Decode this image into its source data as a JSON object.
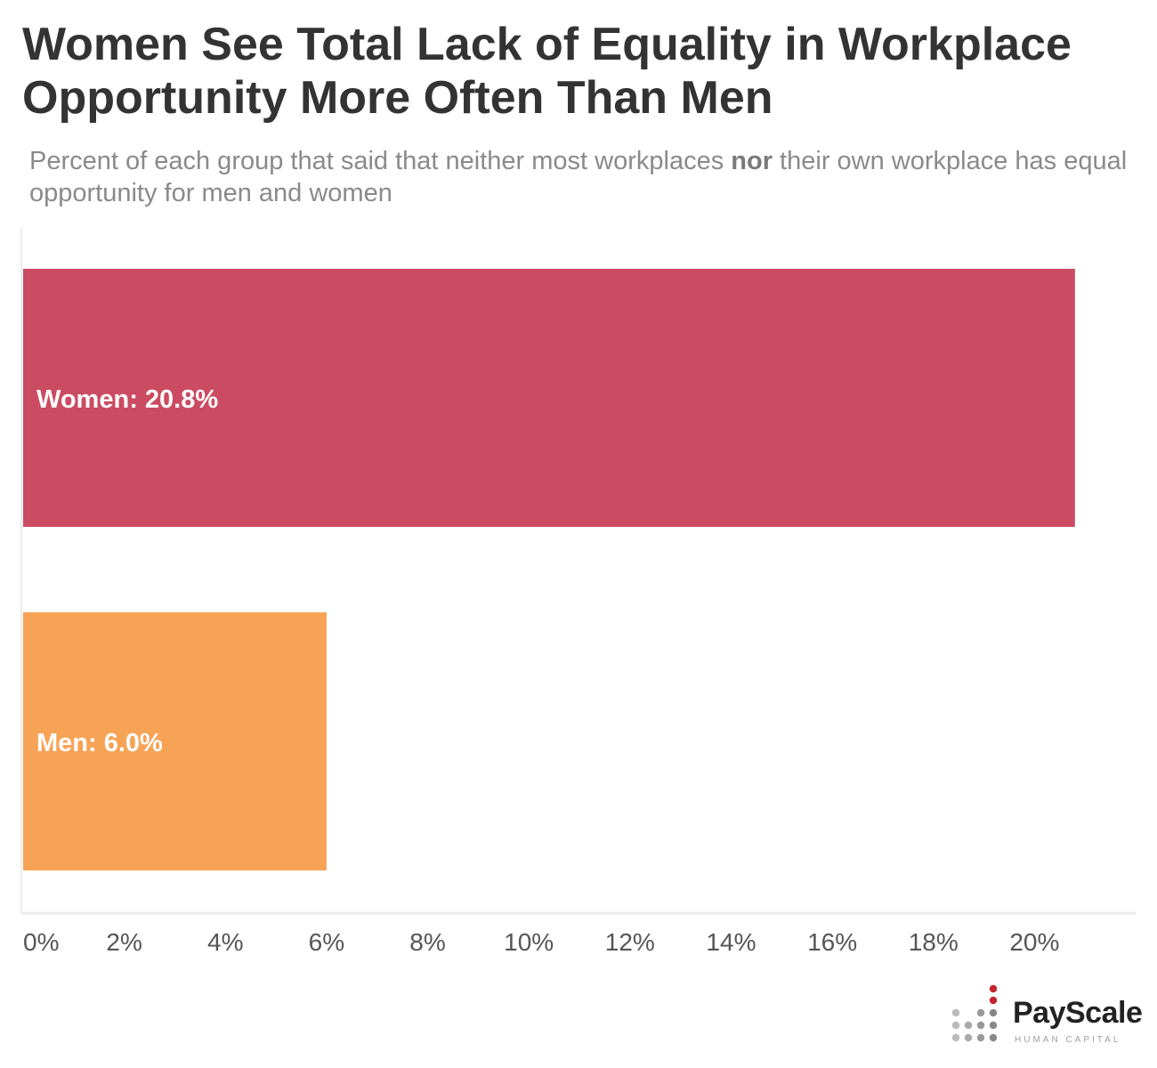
{
  "chart_data": {
    "type": "bar",
    "orientation": "horizontal",
    "title": "Women See Total Lack of Equality in Workplace Opportunity More Often Than Men",
    "subtitle": {
      "before": "Percent of each group that said that neither most workplaces ",
      "emphasis": "nor",
      "after": " their own workplace has equal opportunity for men and women"
    },
    "categories": [
      "Women",
      "Men"
    ],
    "values": [
      20.8,
      6.0
    ],
    "data_labels": [
      "Women: 20.8%",
      "Men: 6.0%"
    ],
    "colors": [
      "#cb4b62",
      "#f7a356"
    ],
    "xlim": [
      0,
      22
    ],
    "ticks": [
      0,
      2,
      4,
      6,
      8,
      10,
      12,
      14,
      16,
      18,
      20
    ],
    "tick_labels": [
      "0%",
      "2%",
      "4%",
      "6%",
      "8%",
      "10%",
      "12%",
      "14%",
      "16%",
      "18%",
      "20%"
    ],
    "grid": false
  },
  "logo": {
    "name": "PayScale",
    "tagline": "HUMAN CAPITAL"
  }
}
